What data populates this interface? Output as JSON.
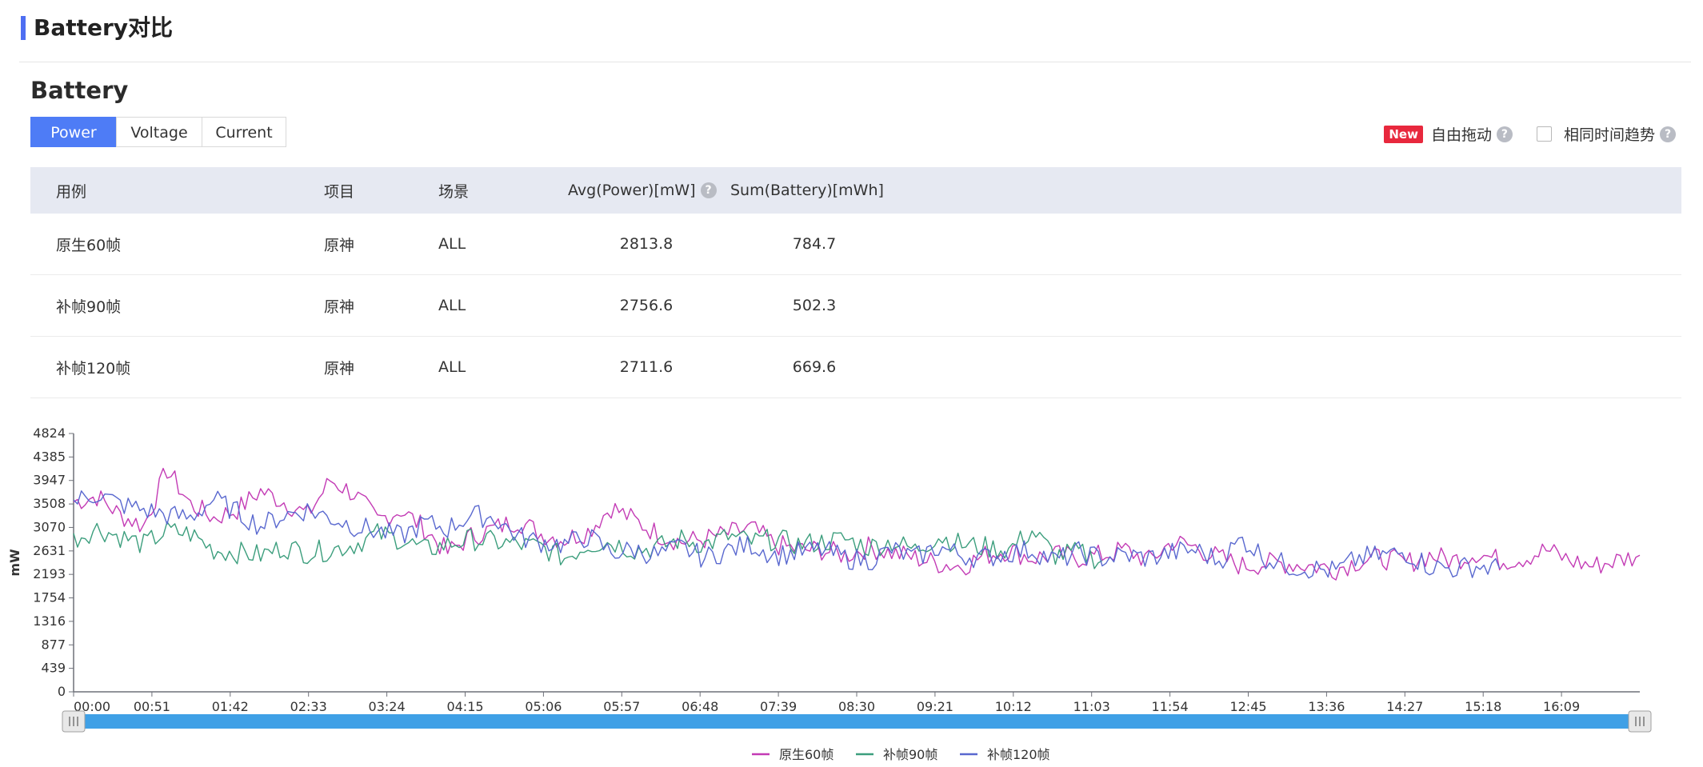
{
  "header": {
    "title": "Battery对比"
  },
  "section": {
    "title": "Battery"
  },
  "tabs": [
    {
      "label": "Power",
      "active": true
    },
    {
      "label": "Voltage",
      "active": false
    },
    {
      "label": "Current",
      "active": false
    }
  ],
  "options": {
    "new_badge": "New",
    "free_drag_label": "自由拖动",
    "help_icon": "?",
    "same_time_trend_label": "相同时间趋势",
    "same_time_trend_checked": false
  },
  "table": {
    "headers": [
      "用例",
      "项目",
      "场景",
      "Avg(Power)[mW]",
      "Sum(Battery)[mWh]"
    ],
    "rows": [
      [
        "原生60帧",
        "原神",
        "ALL",
        "2813.8",
        "784.7"
      ],
      [
        "补帧90帧",
        "原神",
        "ALL",
        "2756.6",
        "502.3"
      ],
      [
        "补帧120帧",
        "原神",
        "ALL",
        "2711.6",
        "669.6"
      ]
    ]
  },
  "chart_data": {
    "type": "line",
    "ylabel": "mW",
    "yticks": [
      "0",
      "439",
      "877",
      "1316",
      "1754",
      "2193",
      "2631",
      "3070",
      "3508",
      "3947",
      "4385",
      "4824"
    ],
    "ylim": [
      0,
      4824
    ],
    "xticks": [
      "00:00",
      "00:51",
      "01:42",
      "02:33",
      "03:24",
      "04:15",
      "05:06",
      "05:57",
      "06:48",
      "07:39",
      "08:30",
      "09:21",
      "10:12",
      "11:03",
      "11:54",
      "12:45",
      "13:36",
      "14:27",
      "15:18",
      "16:09"
    ],
    "xlim_seconds": [
      0,
      1005
    ],
    "legend_position": "bottom-center",
    "zoom_slider": {
      "start_percent": 0,
      "end_percent": 100
    },
    "series": [
      {
        "name": "原生60帧",
        "color": "#c33bb5",
        "x_seconds": [
          0,
          15,
          30,
          45,
          60,
          75,
          90,
          105,
          120,
          135,
          150,
          165,
          180,
          195,
          210,
          225,
          240,
          255,
          270,
          285,
          300,
          315,
          330,
          345,
          360,
          375,
          390,
          405,
          420,
          435,
          450,
          465,
          480,
          495,
          510,
          525,
          540,
          555,
          570,
          585,
          600,
          615,
          630,
          645,
          660,
          675,
          690,
          705,
          720,
          735,
          750,
          765,
          780,
          795,
          810,
          825,
          840,
          855,
          870,
          885,
          900,
          915,
          930,
          945,
          960,
          975,
          990,
          1005
        ],
        "values": [
          3550,
          3650,
          3300,
          3100,
          4150,
          3500,
          3250,
          3400,
          3750,
          3550,
          3300,
          3950,
          3700,
          3200,
          3400,
          3050,
          2600,
          2900,
          3050,
          3200,
          2950,
          2850,
          3000,
          3450,
          3200,
          2950,
          2800,
          2850,
          2950,
          3050,
          2750,
          2650,
          2650,
          2550,
          2700,
          2600,
          2500,
          2400,
          2350,
          2550,
          2650,
          2500,
          2550,
          2500,
          2550,
          2650,
          2450,
          2800,
          2700,
          2500,
          2350,
          2400,
          2400,
          2350,
          2300,
          2450,
          2500,
          2400,
          2550,
          2450,
          2600,
          2450,
          2500,
          2650,
          2450,
          2350,
          2450,
          2550
        ]
      },
      {
        "name": "补帧90帧",
        "color": "#3c9e7d",
        "x_seconds": [
          0,
          15,
          30,
          45,
          60,
          75,
          90,
          105,
          120,
          135,
          150,
          165,
          180,
          195,
          210,
          225,
          240,
          255,
          270,
          285,
          300,
          315,
          330,
          345,
          360,
          375,
          390,
          405,
          420,
          435,
          450,
          465,
          480,
          495,
          510,
          525,
          540,
          555,
          570,
          585,
          600,
          615,
          630,
          645,
          660
        ],
        "values": [
          2850,
          3050,
          2900,
          2750,
          3000,
          2950,
          2650,
          2600,
          2550,
          2700,
          2600,
          2650,
          2750,
          2950,
          2850,
          2650,
          2750,
          2850,
          2800,
          2750,
          2700,
          2500,
          2750,
          2800,
          2650,
          2700,
          2850,
          2750,
          2900,
          2800,
          2850,
          2750,
          2800,
          2850,
          2700,
          2800,
          2650,
          2900,
          2750,
          2700,
          2650,
          3000,
          2550,
          2600,
          2450
        ]
      },
      {
        "name": "补帧120帧",
        "color": "#5968cf",
        "x_seconds": [
          0,
          15,
          30,
          45,
          60,
          75,
          90,
          105,
          120,
          135,
          150,
          165,
          180,
          195,
          210,
          225,
          240,
          255,
          270,
          285,
          300,
          315,
          330,
          345,
          360,
          375,
          390,
          405,
          420,
          435,
          450,
          465,
          480,
          495,
          510,
          525,
          540,
          555,
          570,
          585,
          600,
          615,
          630,
          645,
          660,
          675,
          690,
          705,
          720,
          735,
          750,
          765,
          780,
          795,
          810,
          825,
          840,
          855,
          870,
          885,
          900,
          915
        ],
        "values": [
          3550,
          3700,
          3500,
          3400,
          3300,
          3250,
          3600,
          3350,
          3100,
          3300,
          3400,
          3250,
          3100,
          3000,
          2900,
          3150,
          3050,
          3300,
          3250,
          2900,
          2800,
          2750,
          2900,
          2600,
          2650,
          2550,
          2700,
          2500,
          2650,
          2750,
          2550,
          2600,
          2650,
          2500,
          2450,
          2650,
          2500,
          2700,
          2550,
          2500,
          2600,
          2650,
          2450,
          2600,
          2500,
          2550,
          2500,
          2600,
          2650,
          2450,
          2850,
          2500,
          2350,
          2300,
          2250,
          2500,
          2550,
          2600,
          2350,
          2300,
          2350,
          2300
        ]
      }
    ]
  }
}
